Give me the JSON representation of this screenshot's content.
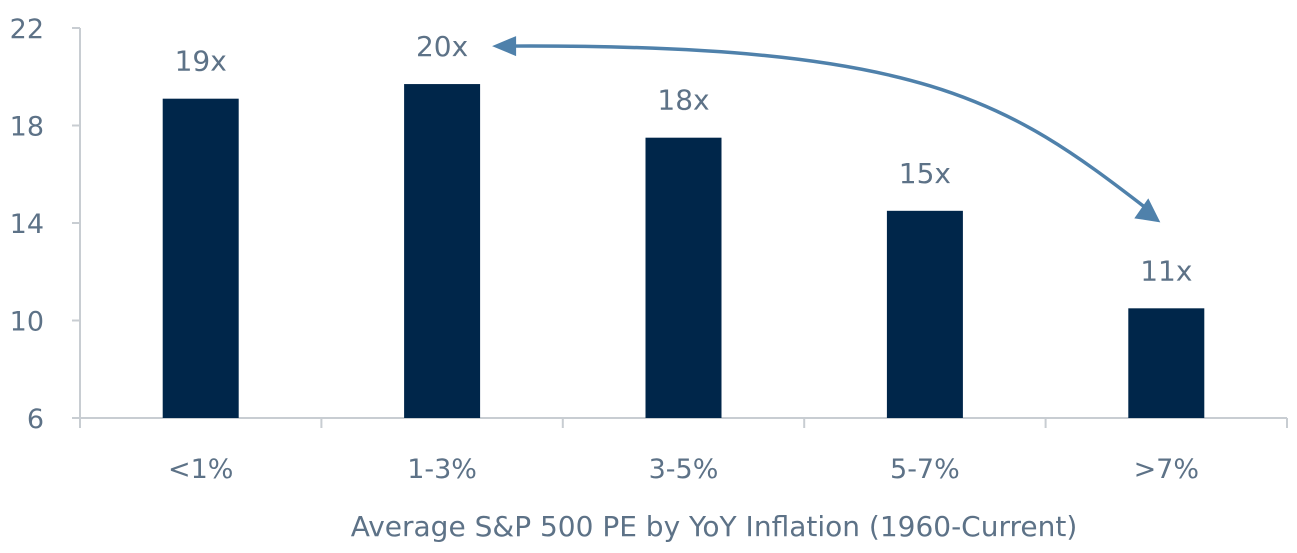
{
  "chart_data": {
    "type": "bar",
    "categories": [
      "<1%",
      "1-3%",
      "3-5%",
      "5-7%",
      ">7%"
    ],
    "values": [
      19.1,
      19.7,
      17.5,
      14.5,
      10.5
    ],
    "data_labels": [
      "19x",
      "20x",
      "18x",
      "15x",
      "11x"
    ],
    "xlabel": "Average S&P 500 PE by YoY Inflation (1960-Current)",
    "ylabel": "",
    "ylim": [
      6,
      22
    ],
    "yticks": [
      "6",
      "10",
      "14",
      "18",
      "22"
    ],
    "grid": false,
    "legend": "none",
    "annotations": [
      {
        "type": "double-arrow",
        "from_category": "1-3%",
        "to_category": ">7%"
      }
    ],
    "colors": {
      "bar": "#00264a",
      "text": "#5d7287",
      "axis": "#c8cdd2",
      "arrow": "#4f81ab"
    }
  }
}
